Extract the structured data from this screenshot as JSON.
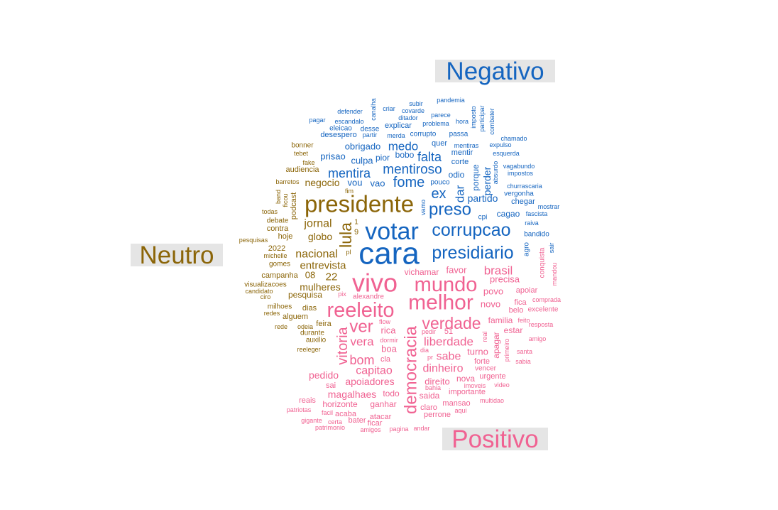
{
  "chart_data": {
    "type": "wordcloud",
    "groups": [
      {
        "key": "neg",
        "label": "Negativo",
        "color": "#1565c0"
      },
      {
        "key": "neu",
        "label": "Neutro",
        "color": "#8b6508"
      },
      {
        "key": "pos",
        "label": "Positivo",
        "color": "#f06292"
      }
    ],
    "words": [
      {
        "t": "cara",
        "g": "neg"
      },
      {
        "t": "votar",
        "g": "neg"
      },
      {
        "t": "corrupcao",
        "g": "neg"
      },
      {
        "t": "presidiario",
        "g": "neg"
      },
      {
        "t": "preso",
        "g": "neg"
      },
      {
        "t": "mentiroso",
        "g": "neg"
      },
      {
        "t": "fome",
        "g": "neg"
      },
      {
        "t": "mentira",
        "g": "neg"
      },
      {
        "t": "ex",
        "g": "neg"
      },
      {
        "t": "falta",
        "g": "neg"
      },
      {
        "t": "medo",
        "g": "neg"
      },
      {
        "t": "dar",
        "g": "neg"
      },
      {
        "t": "partido",
        "g": "neg"
      },
      {
        "t": "perder",
        "g": "neg"
      },
      {
        "t": "porque",
        "g": "neg"
      },
      {
        "t": "obrigado",
        "g": "neg"
      },
      {
        "t": "culpa",
        "g": "neg"
      },
      {
        "t": "prisao",
        "g": "neg"
      },
      {
        "t": "vou",
        "g": "neg"
      },
      {
        "t": "vao",
        "g": "neg"
      },
      {
        "t": "odio",
        "g": "neg"
      },
      {
        "t": "pior",
        "g": "neg"
      },
      {
        "t": "bobo",
        "g": "neg"
      },
      {
        "t": "quer",
        "g": "neg"
      },
      {
        "t": "mentir",
        "g": "neg"
      },
      {
        "t": "corte",
        "g": "neg"
      },
      {
        "t": "pouco",
        "g": "neg"
      },
      {
        "t": "vamo",
        "g": "neg"
      },
      {
        "t": "cpi",
        "g": "neg"
      },
      {
        "t": "cagao",
        "g": "neg"
      },
      {
        "t": "fascista",
        "g": "neg"
      },
      {
        "t": "mostrar",
        "g": "neg"
      },
      {
        "t": "raiva",
        "g": "neg"
      },
      {
        "t": "bandido",
        "g": "neg"
      },
      {
        "t": "agro",
        "g": "neg"
      },
      {
        "t": "sair",
        "g": "neg"
      },
      {
        "t": "chegar",
        "g": "neg"
      },
      {
        "t": "vergonha",
        "g": "neg"
      },
      {
        "t": "churrascaria",
        "g": "neg"
      },
      {
        "t": "impostos",
        "g": "neg"
      },
      {
        "t": "vagabundo",
        "g": "neg"
      },
      {
        "t": "absurdo",
        "g": "neg"
      },
      {
        "t": "esquerda",
        "g": "neg"
      },
      {
        "t": "expulso",
        "g": "neg"
      },
      {
        "t": "chamado",
        "g": "neg"
      },
      {
        "t": "combater",
        "g": "neg"
      },
      {
        "t": "participar",
        "g": "neg"
      },
      {
        "t": "imposto",
        "g": "neg"
      },
      {
        "t": "hora",
        "g": "neg"
      },
      {
        "t": "mentiras",
        "g": "neg"
      },
      {
        "t": "passa",
        "g": "neg"
      },
      {
        "t": "pandemia",
        "g": "neg"
      },
      {
        "t": "parece",
        "g": "neg"
      },
      {
        "t": "problema",
        "g": "neg"
      },
      {
        "t": "corrupto",
        "g": "neg"
      },
      {
        "t": "merda",
        "g": "neg"
      },
      {
        "t": "partir",
        "g": "neg"
      },
      {
        "t": "desse",
        "g": "neg"
      },
      {
        "t": "explicar",
        "g": "neg"
      },
      {
        "t": "ditador",
        "g": "neg"
      },
      {
        "t": "covarde",
        "g": "neg"
      },
      {
        "t": "subir",
        "g": "neg"
      },
      {
        "t": "criar",
        "g": "neg"
      },
      {
        "t": "canalha",
        "g": "neg"
      },
      {
        "t": "defender",
        "g": "neg"
      },
      {
        "t": "escandalo",
        "g": "neg"
      },
      {
        "t": "pagar",
        "g": "neg"
      },
      {
        "t": "eleicao",
        "g": "neg"
      },
      {
        "t": "desespero",
        "g": "neg"
      },
      {
        "t": "presidente",
        "g": "neu"
      },
      {
        "t": "lula",
        "g": "neu"
      },
      {
        "t": "jornal",
        "g": "neu"
      },
      {
        "t": "globo",
        "g": "neu"
      },
      {
        "t": "nacional",
        "g": "neu"
      },
      {
        "t": "entrevista",
        "g": "neu"
      },
      {
        "t": "negocio",
        "g": "neu"
      },
      {
        "t": "22",
        "g": "neu"
      },
      {
        "t": "08",
        "g": "neu"
      },
      {
        "t": "mulheres",
        "g": "neu"
      },
      {
        "t": "pesquisa",
        "g": "neu"
      },
      {
        "t": "audiencia",
        "g": "neu"
      },
      {
        "t": "podcast",
        "g": "neu"
      },
      {
        "t": "hoje",
        "g": "neu"
      },
      {
        "t": "contra",
        "g": "neu"
      },
      {
        "t": "debate",
        "g": "neu"
      },
      {
        "t": "campanha",
        "g": "neu"
      },
      {
        "t": "gomes",
        "g": "neu"
      },
      {
        "t": "2022",
        "g": "neu"
      },
      {
        "t": "michelle",
        "g": "neu"
      },
      {
        "t": "visualizacoes",
        "g": "neu"
      },
      {
        "t": "candidato",
        "g": "neu"
      },
      {
        "t": "ciro",
        "g": "neu"
      },
      {
        "t": "milhoes",
        "g": "neu"
      },
      {
        "t": "dias",
        "g": "neu"
      },
      {
        "t": "redes",
        "g": "neu"
      },
      {
        "t": "alguem",
        "g": "neu"
      },
      {
        "t": "feira",
        "g": "neu"
      },
      {
        "t": "odeia",
        "g": "neu"
      },
      {
        "t": "rede",
        "g": "neu"
      },
      {
        "t": "durante",
        "g": "neu"
      },
      {
        "t": "auxilio",
        "g": "neu"
      },
      {
        "t": "reeleger",
        "g": "neu"
      },
      {
        "t": "bonner",
        "g": "neu"
      },
      {
        "t": "tebet",
        "g": "neu"
      },
      {
        "t": "fake",
        "g": "neu"
      },
      {
        "t": "barretos",
        "g": "neu"
      },
      {
        "t": "band",
        "g": "neu"
      },
      {
        "t": "ficou",
        "g": "neu"
      },
      {
        "t": "todas",
        "g": "neu"
      },
      {
        "t": "pesquisas",
        "g": "neu"
      },
      {
        "t": "fim",
        "g": "neu"
      },
      {
        "t": "pl",
        "g": "neu"
      },
      {
        "t": "9",
        "g": "neu"
      },
      {
        "t": "1",
        "g": "neu"
      },
      {
        "t": "vivo",
        "g": "pos"
      },
      {
        "t": "melhor",
        "g": "pos"
      },
      {
        "t": "mundo",
        "g": "pos"
      },
      {
        "t": "reeleito",
        "g": "pos"
      },
      {
        "t": "democracia",
        "g": "pos"
      },
      {
        "t": "verdade",
        "g": "pos"
      },
      {
        "t": "ver",
        "g": "pos"
      },
      {
        "t": "vitoria",
        "g": "pos"
      },
      {
        "t": "vera",
        "g": "pos"
      },
      {
        "t": "bom",
        "g": "pos"
      },
      {
        "t": "liberdade",
        "g": "pos"
      },
      {
        "t": "capitao",
        "g": "pos"
      },
      {
        "t": "dinheiro",
        "g": "pos"
      },
      {
        "t": "sabe",
        "g": "pos"
      },
      {
        "t": "brasil",
        "g": "pos"
      },
      {
        "t": "pedido",
        "g": "pos"
      },
      {
        "t": "apoiadores",
        "g": "pos"
      },
      {
        "t": "magalhaes",
        "g": "pos"
      },
      {
        "t": "horizonte",
        "g": "pos"
      },
      {
        "t": "favor",
        "g": "pos"
      },
      {
        "t": "vichamar",
        "g": "pos"
      },
      {
        "t": "precisa",
        "g": "pos"
      },
      {
        "t": "povo",
        "g": "pos"
      },
      {
        "t": "novo",
        "g": "pos"
      },
      {
        "t": "familia",
        "g": "pos"
      },
      {
        "t": "estar",
        "g": "pos"
      },
      {
        "t": "turno",
        "g": "pos"
      },
      {
        "t": "apagar",
        "g": "pos"
      },
      {
        "t": "direito",
        "g": "pos"
      },
      {
        "t": "nova",
        "g": "pos"
      },
      {
        "t": "rica",
        "g": "pos"
      },
      {
        "t": "boa",
        "g": "pos"
      },
      {
        "t": "todo",
        "g": "pos"
      },
      {
        "t": "ganhar",
        "g": "pos"
      },
      {
        "t": "saida",
        "g": "pos"
      },
      {
        "t": "importante",
        "g": "pos"
      },
      {
        "t": "mansao",
        "g": "pos"
      },
      {
        "t": "claro",
        "g": "pos"
      },
      {
        "t": "perrone",
        "g": "pos"
      },
      {
        "t": "sai",
        "g": "pos"
      },
      {
        "t": "reais",
        "g": "pos"
      },
      {
        "t": "acaba",
        "g": "pos"
      },
      {
        "t": "atacar",
        "g": "pos"
      },
      {
        "t": "bater",
        "g": "pos"
      },
      {
        "t": "ficar",
        "g": "pos"
      },
      {
        "t": "apoiar",
        "g": "pos"
      },
      {
        "t": "fica",
        "g": "pos"
      },
      {
        "t": "belo",
        "g": "pos"
      },
      {
        "t": "excelente",
        "g": "pos"
      },
      {
        "t": "comprada",
        "g": "pos"
      },
      {
        "t": "conquista",
        "g": "pos"
      },
      {
        "t": "mandou",
        "g": "pos"
      },
      {
        "t": "resposta",
        "g": "pos"
      },
      {
        "t": "amigo",
        "g": "pos"
      },
      {
        "t": "feito",
        "g": "pos"
      },
      {
        "t": "forte",
        "g": "pos"
      },
      {
        "t": "vencer",
        "g": "pos"
      },
      {
        "t": "urgente",
        "g": "pos"
      },
      {
        "t": "video",
        "g": "pos"
      },
      {
        "t": "primeiro",
        "g": "pos"
      },
      {
        "t": "santa",
        "g": "pos"
      },
      {
        "t": "sabia",
        "g": "pos"
      },
      {
        "t": "multidao",
        "g": "pos"
      },
      {
        "t": "aqui",
        "g": "pos"
      },
      {
        "t": "imoveis",
        "g": "pos"
      },
      {
        "t": "bahia",
        "g": "pos"
      },
      {
        "t": "alexandre",
        "g": "pos"
      },
      {
        "t": "pix",
        "g": "pos"
      },
      {
        "t": "flow",
        "g": "pos"
      },
      {
        "t": "pedir",
        "g": "pos"
      },
      {
        "t": "51",
        "g": "pos"
      },
      {
        "t": "dormir",
        "g": "pos"
      },
      {
        "t": "cla",
        "g": "pos"
      },
      {
        "t": "dia",
        "g": "pos"
      },
      {
        "t": "pr",
        "g": "pos"
      },
      {
        "t": "real",
        "g": "pos"
      },
      {
        "t": "facil",
        "g": "pos"
      },
      {
        "t": "gigante",
        "g": "pos"
      },
      {
        "t": "patrimonio",
        "g": "pos"
      },
      {
        "t": "amigos",
        "g": "pos"
      },
      {
        "t": "pagina",
        "g": "pos"
      },
      {
        "t": "andar",
        "g": "pos"
      },
      {
        "t": "certa",
        "g": "pos"
      },
      {
        "t": "patriotas",
        "g": "pos"
      }
    ]
  }
}
